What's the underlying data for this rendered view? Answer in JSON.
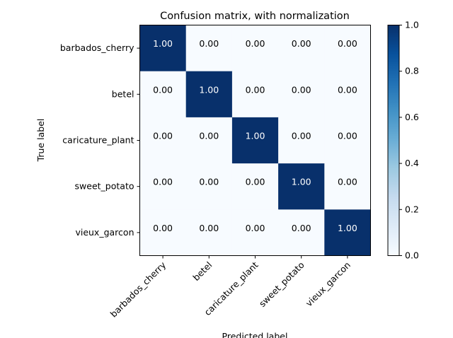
{
  "chart_data": {
    "type": "heatmap",
    "title": "Confusion matrix, with normalization",
    "xlabel": "Predicted label",
    "ylabel": "True label",
    "classes": [
      "barbados_cherry",
      "betel",
      "caricature_plant",
      "sweet_potato",
      "vieux_garcon"
    ],
    "matrix": [
      [
        1.0,
        0.0,
        0.0,
        0.0,
        0.0
      ],
      [
        0.0,
        1.0,
        0.0,
        0.0,
        0.0
      ],
      [
        0.0,
        0.0,
        1.0,
        0.0,
        0.0
      ],
      [
        0.0,
        0.0,
        0.0,
        1.0,
        0.0
      ],
      [
        0.0,
        0.0,
        0.0,
        0.0,
        1.0
      ]
    ],
    "cell_format": "2 decimals",
    "colormap": "Blues",
    "colormap_low": "#f7fbff",
    "colormap_high": "#08306b",
    "colorbar": {
      "range": [
        0.0,
        1.0
      ],
      "ticks": [
        "0.0",
        "0.2",
        "0.4",
        "0.6",
        "0.8",
        "1.0"
      ]
    },
    "xtick_rotation_deg": 45
  }
}
